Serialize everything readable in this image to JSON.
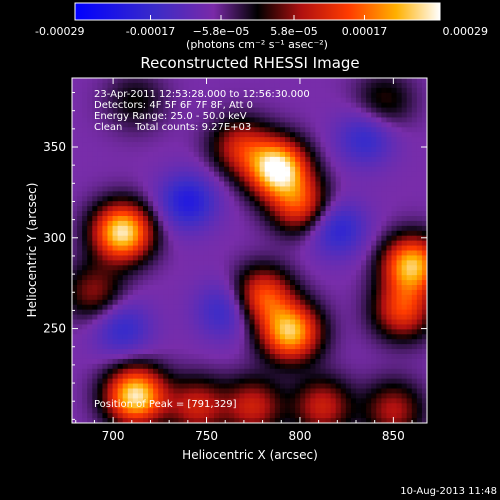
{
  "chart_data": {
    "type": "heatmap",
    "title": "Reconstructed RHESSI Image",
    "xlabel": "Heliocentric X (arcsec)",
    "ylabel": "Heliocentric Y (arcsec)",
    "xlim": [
      678,
      868
    ],
    "ylim": [
      198,
      388
    ],
    "x_ticks": [
      700,
      750,
      800,
      850
    ],
    "y_ticks": [
      250,
      300,
      350
    ],
    "x_tick_labels": [
      "700",
      "750",
      "800",
      "850"
    ],
    "y_tick_labels": [
      "250",
      "300",
      "350"
    ],
    "colorbar": {
      "min": -0.00029,
      "max": 0.00029,
      "ticks": [
        -0.00029,
        -0.00017,
        -5.8e-05,
        5.8e-05,
        0.00017,
        0.00029
      ],
      "tick_labels": [
        "-0.00029",
        "-0.00017",
        "−5.8e−05",
        "5.8e−05",
        "0.00017",
        "0.00029"
      ],
      "unit_label": "(photons cm⁻² s⁻¹ asec⁻²)"
    },
    "annotations": [
      "23-Apr-2011 12:53:28.000 to 12:56:30.000",
      "Detectors: 4F 5F 6F 7F 8F, Att 0",
      "Energy Range: 25.0 - 50.0 keV",
      "Clean    Total counts: 9.27E+03"
    ],
    "peak_label": "Position of Peak = [791,329]",
    "peak": [
      791,
      329
    ],
    "sources": [
      {
        "x": 788,
        "y": 338,
        "amplitude": 1.0
      },
      {
        "x": 800,
        "y": 318,
        "amplitude": 0.55
      },
      {
        "x": 768,
        "y": 350,
        "amplitude": 0.45
      },
      {
        "x": 705,
        "y": 303,
        "amplitude": 0.95
      },
      {
        "x": 795,
        "y": 248,
        "amplitude": 0.85
      },
      {
        "x": 780,
        "y": 268,
        "amplitude": 0.6
      },
      {
        "x": 860,
        "y": 285,
        "amplitude": 0.85
      },
      {
        "x": 855,
        "y": 260,
        "amplitude": 0.55
      },
      {
        "x": 712,
        "y": 213,
        "amplitude": 0.95
      },
      {
        "x": 745,
        "y": 207,
        "amplitude": 0.45
      },
      {
        "x": 775,
        "y": 207,
        "amplitude": 0.45
      },
      {
        "x": 812,
        "y": 207,
        "amplitude": 0.45
      },
      {
        "x": 850,
        "y": 205,
        "amplitude": 0.4
      },
      {
        "x": 690,
        "y": 270,
        "amplitude": 0.35
      },
      {
        "x": 845,
        "y": 375,
        "amplitude": 0.25
      },
      {
        "x": 712,
        "y": 375,
        "amplitude": 0.2
      }
    ],
    "negatives": [
      {
        "x": 740,
        "y": 320,
        "amplitude": 0.4
      },
      {
        "x": 820,
        "y": 305,
        "amplitude": 0.35
      },
      {
        "x": 705,
        "y": 250,
        "amplitude": 0.3
      },
      {
        "x": 760,
        "y": 260,
        "amplitude": 0.3
      },
      {
        "x": 835,
        "y": 355,
        "amplitude": 0.3
      }
    ]
  },
  "footer": {
    "date_stamp": "10-Aug-2013 11:48"
  }
}
